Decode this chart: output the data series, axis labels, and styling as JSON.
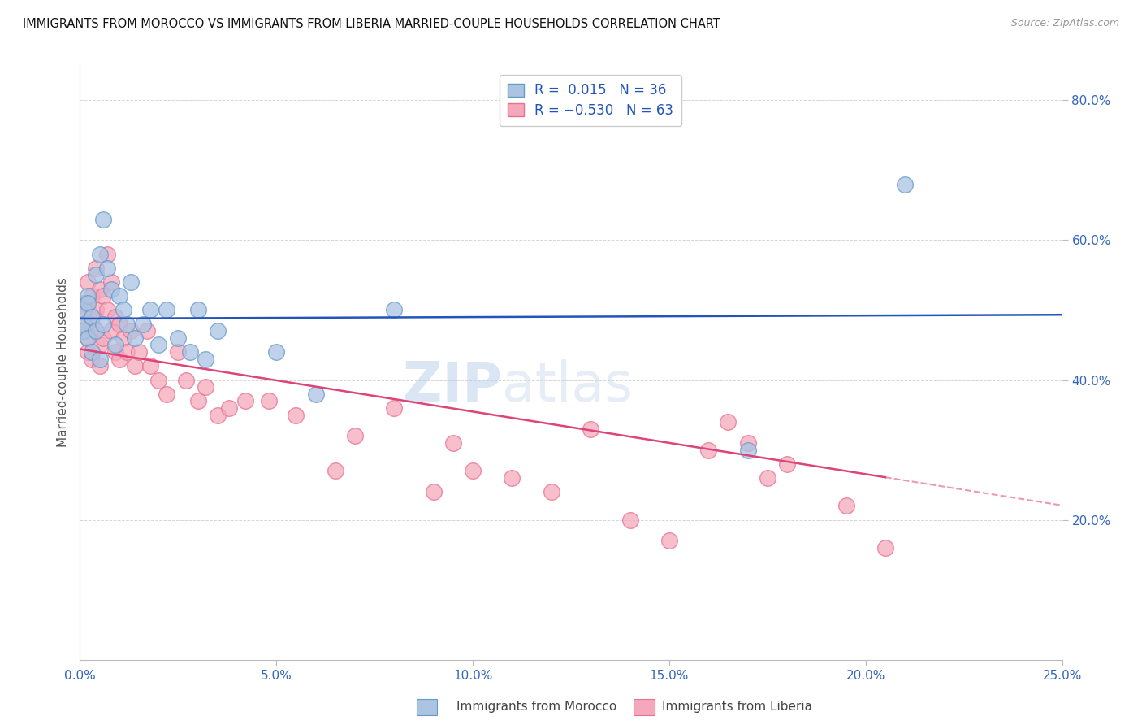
{
  "title": "IMMIGRANTS FROM MOROCCO VS IMMIGRANTS FROM LIBERIA MARRIED-COUPLE HOUSEHOLDS CORRELATION CHART",
  "source": "Source: ZipAtlas.com",
  "ylabel": "Married-couple Households",
  "xlim": [
    0.0,
    0.25
  ],
  "ylim": [
    0.0,
    0.85
  ],
  "xtick_labels": [
    "0.0%",
    "5.0%",
    "10.0%",
    "15.0%",
    "20.0%",
    "25.0%"
  ],
  "xtick_vals": [
    0.0,
    0.05,
    0.1,
    0.15,
    0.2,
    0.25
  ],
  "ytick_labels": [
    "20.0%",
    "40.0%",
    "60.0%",
    "80.0%"
  ],
  "ytick_vals": [
    0.2,
    0.4,
    0.6,
    0.8
  ],
  "morocco_color": "#aac4e2",
  "liberia_color": "#f5a8bb",
  "morocco_edge": "#6699cc",
  "liberia_edge": "#e87090",
  "trend_morocco_color": "#2255bb",
  "trend_liberia_color": "#dd4477",
  "R_morocco": 0.015,
  "N_morocco": 36,
  "R_liberia": -0.53,
  "N_liberia": 63,
  "morocco_x": [
    0.001,
    0.001,
    0.001,
    0.002,
    0.002,
    0.002,
    0.003,
    0.003,
    0.004,
    0.004,
    0.005,
    0.005,
    0.006,
    0.006,
    0.007,
    0.008,
    0.009,
    0.01,
    0.011,
    0.012,
    0.013,
    0.014,
    0.016,
    0.018,
    0.02,
    0.022,
    0.025,
    0.028,
    0.03,
    0.032,
    0.035,
    0.05,
    0.06,
    0.08,
    0.17,
    0.21
  ],
  "morocco_y": [
    0.47,
    0.5,
    0.48,
    0.52,
    0.46,
    0.51,
    0.49,
    0.44,
    0.55,
    0.47,
    0.43,
    0.58,
    0.63,
    0.48,
    0.56,
    0.53,
    0.45,
    0.52,
    0.5,
    0.48,
    0.54,
    0.46,
    0.48,
    0.5,
    0.45,
    0.5,
    0.46,
    0.44,
    0.5,
    0.43,
    0.47,
    0.44,
    0.38,
    0.5,
    0.3,
    0.68
  ],
  "liberia_x": [
    0.001,
    0.001,
    0.001,
    0.002,
    0.002,
    0.002,
    0.002,
    0.003,
    0.003,
    0.003,
    0.003,
    0.004,
    0.004,
    0.004,
    0.005,
    0.005,
    0.005,
    0.006,
    0.006,
    0.007,
    0.007,
    0.008,
    0.008,
    0.009,
    0.009,
    0.01,
    0.01,
    0.011,
    0.012,
    0.013,
    0.014,
    0.015,
    0.017,
    0.018,
    0.02,
    0.022,
    0.025,
    0.027,
    0.03,
    0.032,
    0.035,
    0.038,
    0.042,
    0.048,
    0.055,
    0.065,
    0.07,
    0.08,
    0.09,
    0.095,
    0.1,
    0.11,
    0.12,
    0.13,
    0.14,
    0.15,
    0.16,
    0.165,
    0.17,
    0.175,
    0.18,
    0.195,
    0.205
  ],
  "liberia_y": [
    0.48,
    0.51,
    0.47,
    0.54,
    0.5,
    0.46,
    0.44,
    0.52,
    0.48,
    0.43,
    0.49,
    0.56,
    0.5,
    0.47,
    0.53,
    0.45,
    0.42,
    0.52,
    0.46,
    0.58,
    0.5,
    0.54,
    0.47,
    0.44,
    0.49,
    0.48,
    0.43,
    0.46,
    0.44,
    0.47,
    0.42,
    0.44,
    0.47,
    0.42,
    0.4,
    0.38,
    0.44,
    0.4,
    0.37,
    0.39,
    0.35,
    0.36,
    0.37,
    0.37,
    0.35,
    0.27,
    0.32,
    0.36,
    0.24,
    0.31,
    0.27,
    0.26,
    0.24,
    0.33,
    0.2,
    0.17,
    0.3,
    0.34,
    0.31,
    0.26,
    0.28,
    0.22,
    0.16
  ],
  "watermark_zip": "ZIP",
  "watermark_atlas": "atlas",
  "background_color": "#ffffff",
  "grid_color": "#cccccc",
  "legend_entries": [
    {
      "label_r": "R = ",
      "r_val": " 0.015",
      "label_n": "  N = ",
      "n_val": "36"
    },
    {
      "label_r": "R = ",
      "r_val": "-0.530",
      "label_n": "  N = ",
      "n_val": "63"
    }
  ]
}
